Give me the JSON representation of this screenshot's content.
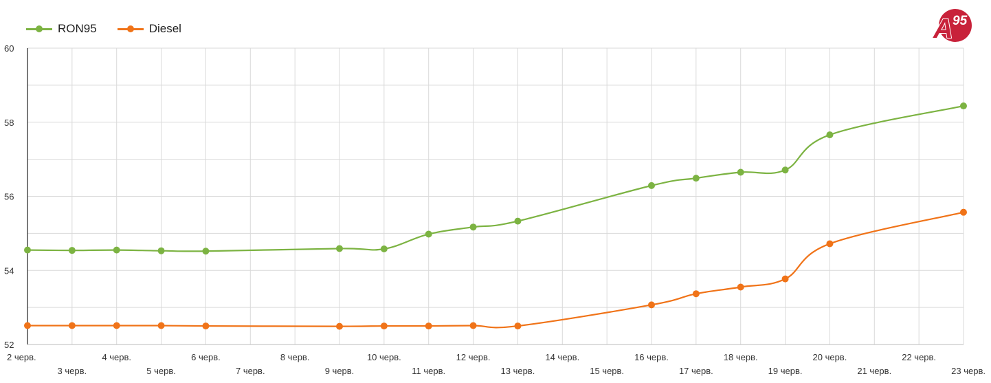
{
  "logo": {
    "letter": "A",
    "number": "95",
    "color": "#c8223a"
  },
  "chart_data": {
    "type": "line",
    "title": "",
    "xlabel": "",
    "ylabel": "",
    "categories": [
      "2 черв.",
      "3 черв.",
      "4 черв.",
      "5 черв.",
      "6 черв.",
      "7 черв.",
      "8 черв.",
      "9 черв.",
      "10 черв.",
      "11 черв.",
      "12 черв.",
      "13 черв.",
      "14 черв.",
      "15 черв.",
      "16 черв.",
      "17 черв.",
      "18 черв.",
      "19 черв.",
      "20 черв.",
      "21 черв.",
      "22 черв.",
      "23 черв."
    ],
    "ylim": [
      52,
      60
    ],
    "yticks": [
      "52",
      "54",
      "56",
      "58",
      "60"
    ],
    "grid": true,
    "legend_position": "top-left",
    "series": [
      {
        "name": "RON95",
        "color": "#7cb342",
        "values": [
          54.55,
          54.54,
          54.55,
          54.53,
          54.52,
          null,
          null,
          54.59,
          54.58,
          54.98,
          55.17,
          55.33,
          null,
          null,
          56.29,
          56.49,
          56.65,
          56.71,
          57.66,
          null,
          null,
          58.44
        ]
      },
      {
        "name": "Diesel",
        "color": "#f07318",
        "values": [
          52.51,
          52.51,
          52.51,
          52.51,
          52.5,
          null,
          null,
          52.49,
          52.5,
          52.5,
          52.51,
          52.5,
          null,
          null,
          53.07,
          53.37,
          53.55,
          53.77,
          54.72,
          null,
          null,
          55.57
        ]
      }
    ]
  }
}
